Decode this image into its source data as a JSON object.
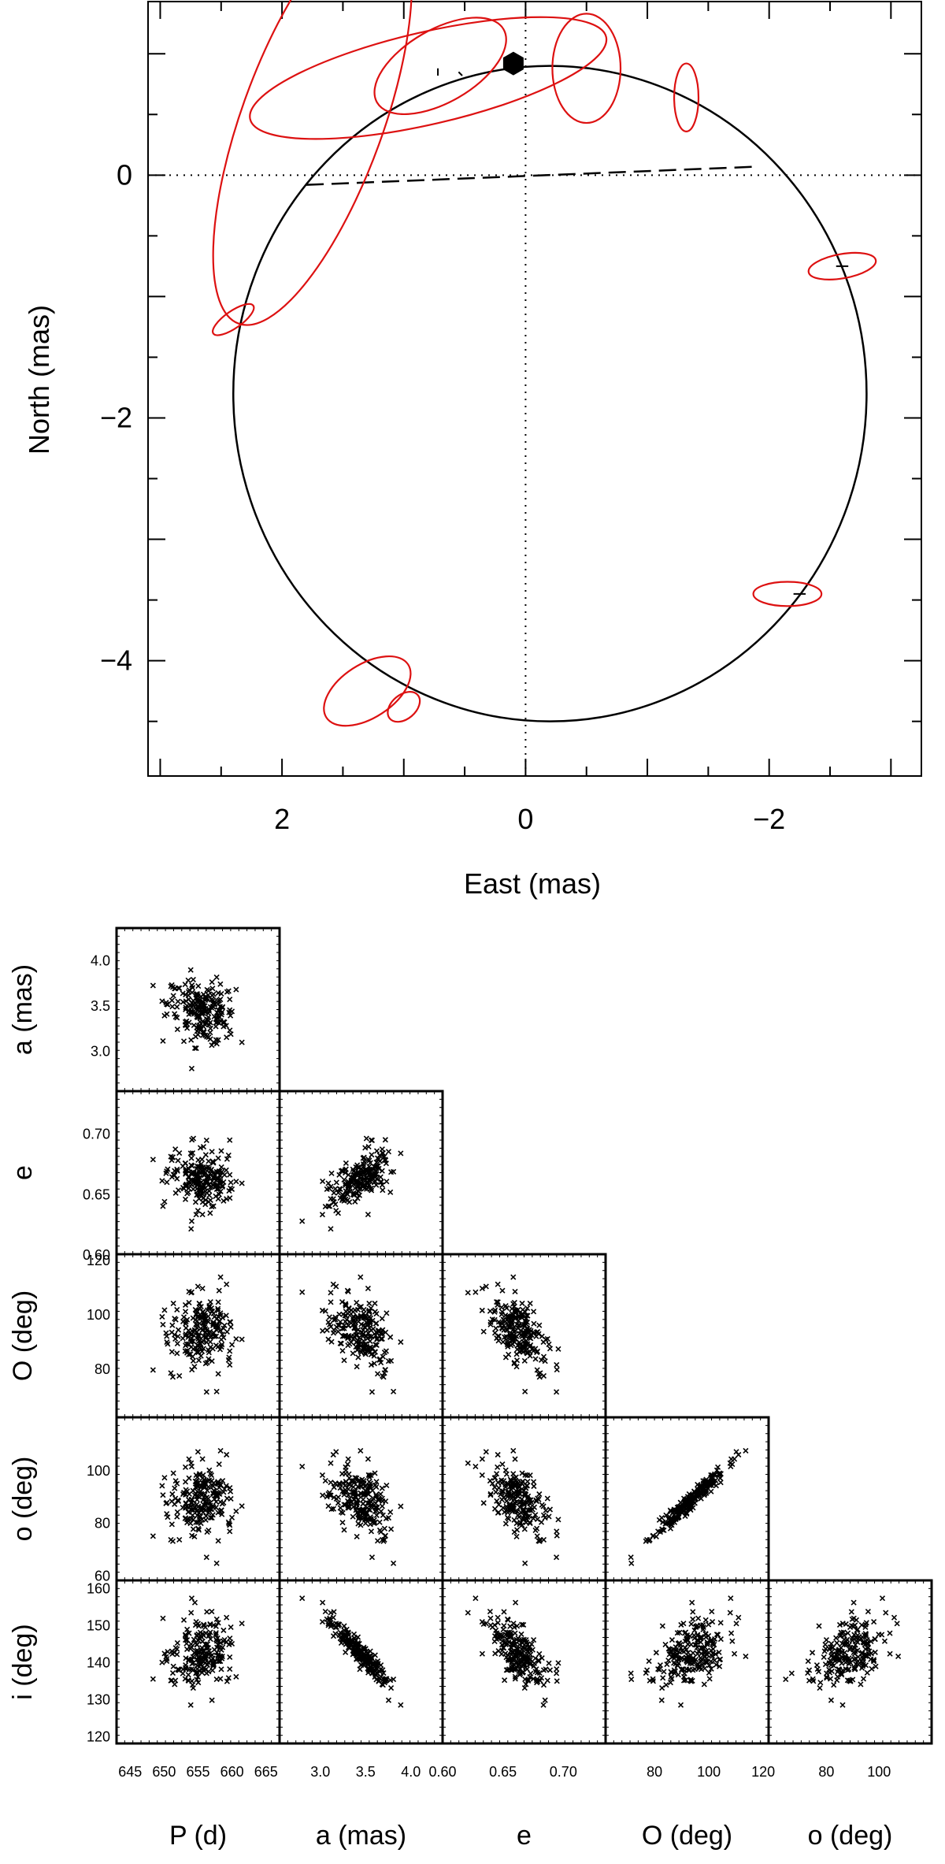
{
  "chart_data": [
    {
      "type": "scatter",
      "title": "",
      "xlabel": "East (mas)",
      "ylabel": "North (mas)",
      "xlim": [
        3.1,
        -3.25
      ],
      "ylim": [
        -4.95,
        1.43
      ],
      "x_ticks": [
        2,
        0,
        -2
      ],
      "x_tick_labels": [
        "2",
        "0",
        "−2"
      ],
      "y_ticks": [
        0,
        -2,
        -4
      ],
      "y_tick_labels": [
        "0",
        "−2",
        "−4"
      ],
      "orbit": {
        "center": [
          -0.2,
          -1.8
        ],
        "semi_x": 2.6,
        "semi_y": 2.7,
        "color": "#000000"
      },
      "line_of_nodes": {
        "from": [
          1.8,
          -0.08
        ],
        "to": [
          -1.9,
          0.07
        ],
        "style": "dashed"
      },
      "primary_star": {
        "x": 0.1,
        "y": 0.92,
        "marker": "hexagon"
      },
      "error_ellipse_color": "#dd1111",
      "error_ellipses": [
        {
          "x": 1.75,
          "y": 0.45,
          "rx": 0.58,
          "ry": 1.78,
          "angle_deg": 20
        },
        {
          "x": 0.8,
          "y": 0.8,
          "rx": 1.5,
          "ry": 0.38,
          "angle_deg": -13
        },
        {
          "x": 0.7,
          "y": 0.9,
          "rx": 0.6,
          "ry": 0.3,
          "angle_deg": -30
        },
        {
          "x": -0.5,
          "y": 0.88,
          "rx": 0.28,
          "ry": 0.45,
          "angle_deg": 0
        },
        {
          "x": -1.32,
          "y": 0.64,
          "rx": 0.1,
          "ry": 0.28,
          "angle_deg": 0
        },
        {
          "x": -2.6,
          "y": -0.75,
          "rx": 0.28,
          "ry": 0.1,
          "angle_deg": -10
        },
        {
          "x": 2.4,
          "y": -1.19,
          "rx": 0.2,
          "ry": 0.07,
          "angle_deg": -35
        },
        {
          "x": -2.15,
          "y": -3.45,
          "rx": 0.28,
          "ry": 0.1,
          "angle_deg": 0
        },
        {
          "x": 1.3,
          "y": -4.25,
          "rx": 0.4,
          "ry": 0.22,
          "angle_deg": -33
        },
        {
          "x": 1.0,
          "y": -4.38,
          "rx": 0.15,
          "ry": 0.1,
          "angle_deg": -40
        }
      ]
    },
    {
      "type": "scatter",
      "title": "",
      "description_of_layout": "corner",
      "parameters": [
        {
          "key": "P",
          "label": "P (d)",
          "range": [
            643,
            667
          ],
          "mean": 655.5,
          "sd": 2.5,
          "ticks": [
            645,
            650,
            655,
            660,
            665
          ],
          "tick_labels": [
            "645",
            "650",
            "655",
            "660",
            "665"
          ]
        },
        {
          "key": "a",
          "label": "a (mas)",
          "range": [
            2.55,
            4.35
          ],
          "mean": 3.45,
          "sd": 0.17,
          "ticks": [
            3.0,
            3.5,
            4.0
          ],
          "tick_labels": [
            "3.0",
            "3.5",
            "4.0"
          ]
        },
        {
          "key": "e",
          "label": "e",
          "range": [
            0.6,
            0.735
          ],
          "mean": 0.663,
          "sd": 0.012,
          "ticks": [
            0.6,
            0.65,
            0.7
          ],
          "tick_labels": [
            "0.60",
            "0.65",
            "0.70"
          ]
        },
        {
          "key": "O",
          "label": "O (deg)",
          "range": [
            62,
            122
          ],
          "mean": 93,
          "sd": 7,
          "ticks": [
            80,
            100,
            120
          ],
          "tick_labels": [
            "80",
            "100",
            "120"
          ]
        },
        {
          "key": "o",
          "label": "o (deg)",
          "range": [
            58,
            120
          ],
          "mean": 88,
          "sd": 7,
          "ticks": [
            80,
            100
          ],
          "tick_labels": [
            "80",
            "100"
          ]
        },
        {
          "key": "i",
          "label": "i (deg)",
          "range": [
            118,
            162
          ],
          "mean": 142,
          "sd": 4.5,
          "ticks": [
            120,
            130,
            140,
            150,
            160
          ],
          "tick_labels": [
            "120",
            "130",
            "140",
            "150",
            "160"
          ]
        }
      ],
      "row_tick_overrides": {
        "a": {
          "ticks": [
            3.0,
            3.5,
            4.0
          ],
          "tick_labels": [
            "3.0",
            "3.5",
            "4.0"
          ]
        },
        "e": {
          "ticks": [
            0.6,
            0.65,
            0.7
          ],
          "tick_labels": [
            "0.60",
            "0.65",
            "0.70"
          ]
        },
        "O": {
          "ticks": [
            80,
            100,
            120
          ],
          "tick_labels": [
            "80",
            "100",
            "120"
          ]
        },
        "o": {
          "ticks": [
            60,
            80,
            100
          ],
          "tick_labels": [
            "60",
            "80",
            "100"
          ]
        },
        "i": {
          "ticks": [
            120,
            130,
            140,
            150,
            160
          ],
          "tick_labels": [
            "120",
            "130",
            "140",
            "150",
            "160"
          ]
        }
      },
      "correlations": {
        "P-a": -0.2,
        "P-e": 0.0,
        "P-O": -0.05,
        "P-o": -0.05,
        "P-i": 0.1,
        "a-e": 0.6,
        "a-O": 0.05,
        "a-o": 0.05,
        "a-i": -0.93,
        "e-O": -0.55,
        "e-o": -0.55,
        "e-i": -0.8,
        "O-o": 0.97,
        "O-i": 0.05,
        "o-i": 0.05
      },
      "n_samples": 220,
      "marker": "x"
    }
  ]
}
